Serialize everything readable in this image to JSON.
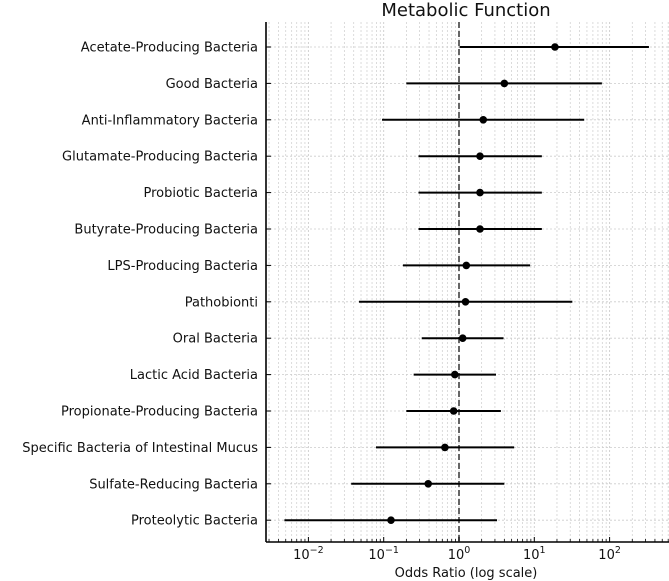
{
  "chart_data": {
    "type": "forest",
    "title": "Metabolic Function",
    "xlabel": "Odds Ratio (log scale)",
    "ylabel": "",
    "xscale": "log",
    "xlim": [
      0.0027,
      600
    ],
    "xticks": [
      {
        "value": 0.01,
        "label": "10^-2",
        "base": "10",
        "exp": "−2"
      },
      {
        "value": 0.1,
        "label": "10^-1",
        "base": "10",
        "exp": "−1"
      },
      {
        "value": 1,
        "label": "10^0",
        "base": "10",
        "exp": "0"
      },
      {
        "value": 10,
        "label": "10^1",
        "base": "10",
        "exp": "1"
      },
      {
        "value": 100,
        "label": "10^2",
        "base": "10",
        "exp": "2"
      }
    ],
    "reference_line": {
      "value": 1,
      "style": "dashed",
      "color": "#555555"
    },
    "grid": {
      "major": true,
      "minor": true,
      "color": "#cccccc",
      "style": "dotted"
    },
    "marker_color": "#000000",
    "line_color": "#000000",
    "categories": [
      "Acetate-Producing Bacteria",
      "Good Bacteria",
      "Anti-Inflammatory Bacteria",
      "Glutamate-Producing Bacteria",
      "Probiotic Bacteria",
      "Butyrate-Producing Bacteria",
      "LPS-Producing Bacteria",
      "Pathobionti",
      "Oral Bacteria",
      "Lactic Acid Bacteria",
      "Propionate-Producing Bacteria",
      "Specific Bacteria of Intestinal Mucus",
      "Sulfate-Reducing Bacteria",
      "Proteolytic Bacteria"
    ],
    "rows": [
      {
        "label": "Acetate-Producing Bacteria",
        "or": 18.8,
        "lower": 1.02,
        "upper": 333
      },
      {
        "label": "Good Bacteria",
        "or": 4.0,
        "lower": 0.2,
        "upper": 79
      },
      {
        "label": "Anti-Inflammatory Bacteria",
        "or": 2.1,
        "lower": 0.095,
        "upper": 46
      },
      {
        "label": "Glutamate-Producing Bacteria",
        "or": 1.9,
        "lower": 0.29,
        "upper": 12.6
      },
      {
        "label": "Probiotic Bacteria",
        "or": 1.9,
        "lower": 0.29,
        "upper": 12.6
      },
      {
        "label": "Butyrate-Producing Bacteria",
        "or": 1.9,
        "lower": 0.29,
        "upper": 12.6
      },
      {
        "label": "LPS-Producing Bacteria",
        "or": 1.25,
        "lower": 0.18,
        "upper": 8.8
      },
      {
        "label": "Pathobionti",
        "or": 1.22,
        "lower": 0.047,
        "upper": 32
      },
      {
        "label": "Oral Bacteria",
        "or": 1.12,
        "lower": 0.32,
        "upper": 3.9
      },
      {
        "label": "Lactic Acid Bacteria",
        "or": 0.88,
        "lower": 0.25,
        "upper": 3.1
      },
      {
        "label": "Propionate-Producing Bacteria",
        "or": 0.85,
        "lower": 0.2,
        "upper": 3.6
      },
      {
        "label": "Specific Bacteria of Intestinal Mucus",
        "or": 0.65,
        "lower": 0.079,
        "upper": 5.4
      },
      {
        "label": "Sulfate-Reducing Bacteria",
        "or": 0.39,
        "lower": 0.037,
        "upper": 4.0
      },
      {
        "label": "Proteolytic Bacteria",
        "or": 0.125,
        "lower": 0.0048,
        "upper": 3.2
      }
    ]
  }
}
